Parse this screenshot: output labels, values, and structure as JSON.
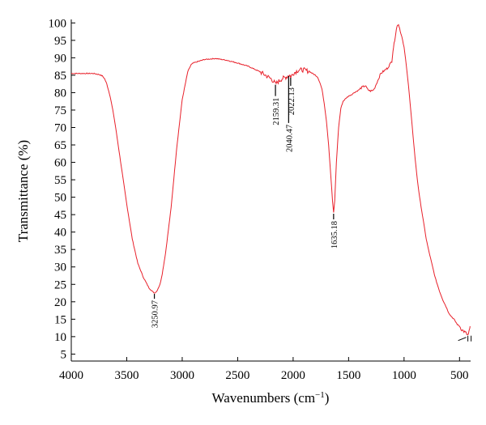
{
  "chart_data": {
    "type": "line",
    "xlabel": "Wavenumbers (cm",
    "xlabel_sup": "−1",
    "xlabel_suffix": ")",
    "ylabel": "Transmittance (%)",
    "xlim": [
      4000,
      400
    ],
    "ylim": [
      3,
      101
    ],
    "x_reversed": true,
    "x_ticks": [
      "4000",
      "3500",
      "3000",
      "2500",
      "2000",
      "1500",
      "1000",
      "500"
    ],
    "x_tick_values": [
      4000,
      3500,
      3000,
      2500,
      2000,
      1500,
      1000,
      500
    ],
    "y_ticks": [
      "5",
      "10",
      "15",
      "20",
      "25",
      "30",
      "35",
      "40",
      "45",
      "50",
      "55",
      "60",
      "65",
      "70",
      "75",
      "80",
      "85",
      "90",
      "95",
      "100"
    ],
    "y_tick_values": [
      5,
      10,
      15,
      20,
      25,
      30,
      35,
      40,
      45,
      50,
      55,
      60,
      65,
      70,
      75,
      80,
      85,
      90,
      95,
      100
    ],
    "grid": false,
    "line_color": "#e8202a",
    "series": [
      {
        "x": [
          4000,
          3900,
          3800,
          3750,
          3720,
          3700,
          3680,
          3650,
          3620,
          3600,
          3550,
          3500,
          3450,
          3400,
          3350,
          3300,
          3270,
          3250,
          3230,
          3200,
          3180,
          3150,
          3100,
          3050,
          3000,
          2950,
          2920,
          2900,
          2850,
          2800,
          2700,
          2600,
          2500,
          2400,
          2300,
          2250,
          2200,
          2170,
          2159,
          2140,
          2100,
          2060,
          2040,
          2030,
          2022,
          2000,
          1950,
          1900,
          1850,
          1800,
          1780,
          1760,
          1740,
          1720,
          1700,
          1680,
          1660,
          1645,
          1635,
          1625,
          1610,
          1590,
          1570,
          1550,
          1520,
          1500,
          1470,
          1450,
          1420,
          1400,
          1380,
          1350,
          1330,
          1310,
          1290,
          1270,
          1250,
          1230,
          1210,
          1190,
          1170,
          1150,
          1130,
          1110,
          1100,
          1090,
          1080,
          1070,
          1060,
          1050,
          1040,
          1030,
          1020,
          1000,
          980,
          960,
          940,
          920,
          900,
          880,
          860,
          840,
          820,
          800,
          780,
          750,
          720,
          700,
          680,
          650,
          620,
          600,
          580,
          550,
          520,
          500,
          480,
          460,
          440,
          430,
          420,
          410,
          405
        ],
        "y": [
          85.5,
          85.5,
          85.5,
          85.2,
          84.8,
          84,
          82.5,
          79,
          74,
          70,
          59,
          48,
          38,
          31,
          27,
          24,
          23,
          22.5,
          23,
          25,
          28,
          34,
          47,
          64,
          78,
          86,
          88,
          88.5,
          89,
          89.5,
          89.8,
          89.3,
          88.5,
          87.5,
          86,
          85,
          84,
          83,
          82.5,
          83,
          84,
          84.5,
          85,
          85,
          84.5,
          85.5,
          86.5,
          86.5,
          86,
          85,
          84.5,
          83,
          81,
          77,
          72,
          65,
          56,
          49,
          45.5,
          49,
          60,
          70,
          75.5,
          77.5,
          78.5,
          79,
          79.5,
          80,
          80.5,
          81,
          81.5,
          82,
          81,
          80.5,
          80.5,
          81,
          82.5,
          84,
          85.5,
          86,
          86.5,
          87,
          88,
          89,
          92,
          94,
          96,
          98,
          99.5,
          99.5,
          98.5,
          97,
          96,
          93,
          88,
          82,
          75,
          68,
          61,
          55,
          50,
          46,
          42,
          38,
          35,
          31,
          27,
          25,
          23,
          20.5,
          18.5,
          17,
          16,
          15,
          13.5,
          13,
          12,
          11.5,
          11,
          10.5,
          10.5,
          12,
          13
        ]
      }
    ],
    "annotations": [
      {
        "label": "3250.97",
        "x": 3250.97,
        "y": 22.5
      },
      {
        "label": "2159.31",
        "x": 2159.31,
        "y": 82.5
      },
      {
        "label": "2040.47",
        "x": 2040.47,
        "y": 85
      },
      {
        "label": "2022.13",
        "x": 2022.13,
        "y": 84.5
      },
      {
        "label": "1635.18",
        "x": 1635.18,
        "y": 45.5
      }
    ]
  }
}
